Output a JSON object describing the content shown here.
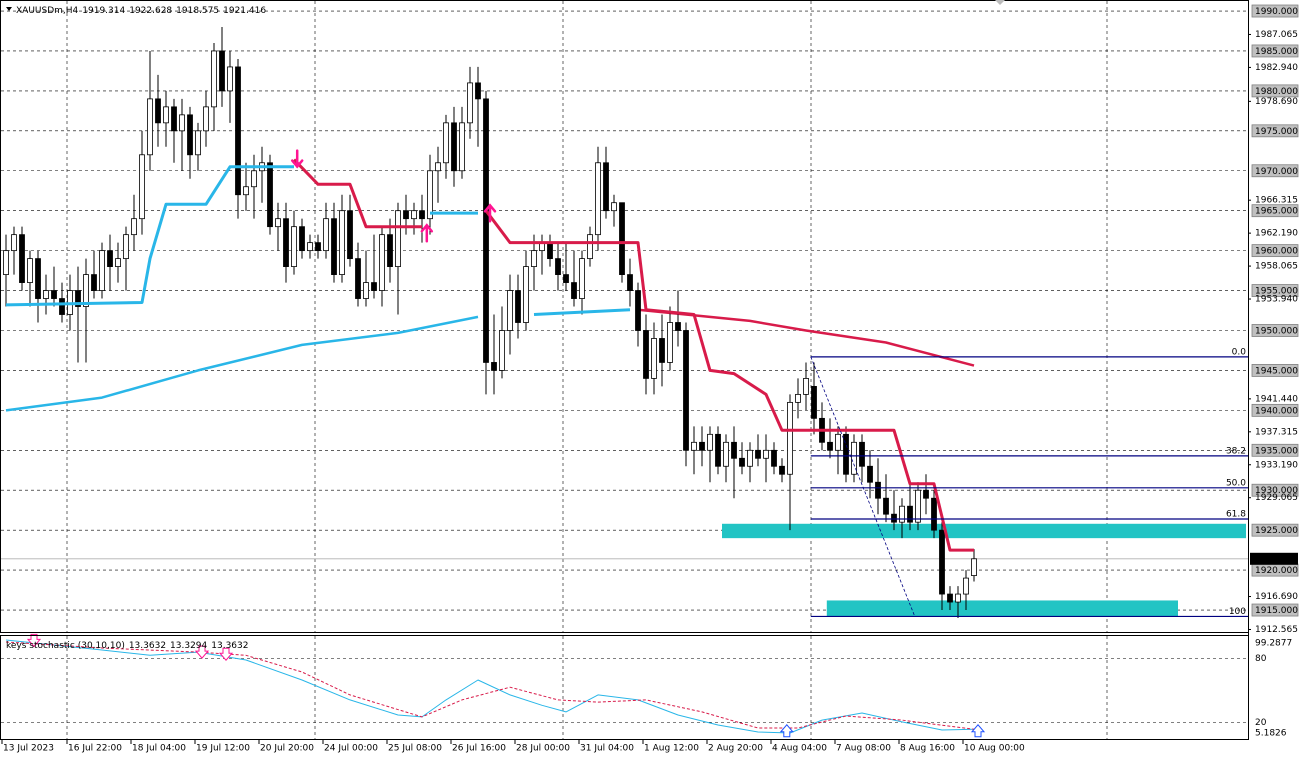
{
  "header": {
    "symbol": "XAUUSDm,H4"
  },
  "chart_data": [
    {
      "type": "candlestick",
      "categories": [
        "13 Jul 2023",
        null,
        null,
        null,
        null,
        null,
        null,
        null,
        "16 Jul 22:00",
        null,
        null,
        null,
        null,
        null,
        null,
        null,
        "18 Jul 04:00",
        null,
        null,
        null,
        null,
        null,
        null,
        null,
        "19 Jul 12:00",
        null,
        null,
        null,
        null,
        null,
        null,
        null,
        "20 Jul 20:00",
        null,
        null,
        null,
        null,
        null,
        null,
        null,
        "24 Jul 00:00",
        null,
        null,
        null,
        null,
        null,
        null,
        null,
        "25 Jul 08:00",
        null,
        null,
        null,
        null,
        null,
        null,
        null,
        "26 Jul 16:00",
        null,
        null,
        null,
        null,
        null,
        null,
        null,
        "28 Jul 00:00",
        null,
        null,
        null,
        null,
        null,
        null,
        null,
        "31 Jul 04:00",
        null,
        null,
        null,
        null,
        null,
        null,
        null,
        "1 Aug 12:00",
        null,
        null,
        null,
        null,
        null,
        null,
        null,
        "2 Aug 20:00",
        null,
        null,
        null,
        null,
        null,
        null,
        null,
        "4 Aug 04:00",
        null,
        null,
        null,
        null,
        null,
        null,
        null,
        "7 Aug 08:00",
        null,
        null,
        null,
        null,
        null,
        null,
        null,
        "8 Aug 16:00",
        null,
        null,
        null,
        null,
        null,
        null,
        null,
        "10 Aug 00:00",
        null
      ],
      "open": [
        1957,
        1960,
        1962,
        1956,
        1959,
        1954,
        1955,
        1954,
        1952,
        1955,
        1953,
        1957,
        1955,
        1960,
        1958,
        1959,
        1962,
        1964,
        1972,
        1979,
        1976,
        1978,
        1975,
        1977,
        1972,
        1975,
        1978,
        1985,
        1980,
        1983,
        1967,
        1968,
        1970,
        1971,
        1963,
        1964,
        1958,
        1963,
        1960,
        1961,
        1960,
        1964,
        1957,
        1965,
        1959,
        1954,
        1956,
        1955,
        1962,
        1958,
        1965,
        1964,
        1965,
        1964,
        1970,
        1971,
        1976,
        1970,
        1976,
        1981,
        1979,
        1946,
        1945,
        1950,
        1955,
        1951,
        1958,
        1960,
        1961,
        1959,
        1957,
        1956,
        1954,
        1959,
        1962,
        1971,
        1965,
        1966,
        1957,
        1955,
        1950,
        1944,
        1949,
        1946,
        1951,
        1950,
        1935,
        1936,
        1935,
        1937,
        1933,
        1936,
        1934,
        1933,
        1935,
        1934,
        1935,
        1933,
        1932,
        1941,
        1942,
        1943,
        1939,
        1936,
        1935,
        1937,
        1932,
        1936,
        1933,
        1931,
        1929,
        1927,
        1926,
        1928,
        1926,
        1930,
        1929,
        1925,
        1917,
        1916,
        1917,
        1919.314
      ],
      "high": [
        1962,
        1963,
        1963,
        1960,
        1960,
        1957,
        1958,
        1956,
        1957,
        1958,
        1959,
        1960,
        1961,
        1962,
        1961,
        1963,
        1967,
        1975,
        1985,
        1982,
        1980,
        1979,
        1979,
        1978,
        1976,
        1980,
        1986,
        1988,
        1985,
        1984,
        1971,
        1972,
        1973,
        1972,
        1966,
        1966,
        1965,
        1964,
        1962,
        1962,
        1966,
        1966,
        1967,
        1967,
        1961,
        1960,
        1962,
        1963,
        1964,
        1966,
        1967,
        1966,
        1967,
        1972,
        1973,
        1977,
        1978,
        1978,
        1983,
        1983,
        1980,
        1952,
        1953,
        1957,
        1957,
        1960,
        1962,
        1962,
        1962,
        1961,
        1961,
        1960,
        1960,
        1963,
        1973,
        1973,
        1967,
        1966,
        1959,
        1956,
        1952,
        1951,
        1952,
        1953,
        1955,
        1951,
        1938,
        1938,
        1938,
        1938,
        1937,
        1938,
        1936,
        1936,
        1937,
        1937,
        1936,
        1934,
        1942,
        1944,
        1946,
        1946,
        1941,
        1939,
        1938,
        1938,
        1937,
        1937,
        1935,
        1934,
        1932,
        1930,
        1929,
        1931,
        1931,
        1932,
        1930,
        1926,
        1918,
        1918,
        1920,
        1922.628
      ],
      "low": [
        1953,
        1957,
        1955,
        1953,
        1951,
        1952,
        1953,
        1951,
        1950,
        1946,
        1946,
        1954,
        1954,
        1955,
        1956,
        1955,
        1960,
        1962,
        1970,
        1973,
        1973,
        1971,
        1970,
        1969,
        1970,
        1973,
        1975,
        1978,
        1976,
        1964,
        1965,
        1964,
        1966,
        1962,
        1960,
        1956,
        1957,
        1959,
        1959,
        1959,
        1959,
        1956,
        1956,
        1958,
        1953,
        1953,
        1954,
        1953,
        1956,
        1952,
        1962,
        1962,
        1961,
        1962,
        1966,
        1969,
        1968,
        1969,
        1974,
        1973,
        1942,
        1942,
        1944,
        1947,
        1949,
        1950,
        1955,
        1957,
        1958,
        1955,
        1955,
        1953,
        1952,
        1958,
        1960,
        1964,
        1963,
        1956,
        1953,
        1948,
        1942,
        1942,
        1943,
        1945,
        1948,
        1933,
        1932,
        1933,
        1931,
        1932,
        1931,
        1929,
        1932,
        1931,
        1933,
        1931,
        1932,
        1931,
        1925,
        1939,
        1940,
        1937,
        1935,
        1934,
        1932,
        1931,
        1931,
        1931,
        1929,
        1927,
        1926,
        1925,
        1924,
        1925,
        1925,
        1927,
        1924,
        1915,
        1915,
        1914,
        1915,
        1918.575
      ],
      "close": [
        1960,
        1962,
        1956,
        1959,
        1954,
        1955,
        1954,
        1952,
        1955,
        1953,
        1957,
        1955,
        1960,
        1958,
        1959,
        1962,
        1964,
        1972,
        1979,
        1976,
        1978,
        1975,
        1977,
        1972,
        1975,
        1978,
        1985,
        1980,
        1983,
        1967,
        1968,
        1970,
        1971,
        1963,
        1964,
        1958,
        1963,
        1960,
        1961,
        1960,
        1964,
        1957,
        1965,
        1959,
        1954,
        1956,
        1955,
        1962,
        1958,
        1965,
        1964,
        1965,
        1964,
        1970,
        1971,
        1976,
        1970,
        1976,
        1981,
        1979,
        1946,
        1945,
        1950,
        1955,
        1951,
        1958,
        1960,
        1961,
        1959,
        1957,
        1956,
        1954,
        1959,
        1962,
        1971,
        1965,
        1966,
        1957,
        1955,
        1950,
        1944,
        1949,
        1946,
        1951,
        1950,
        1935,
        1936,
        1935,
        1937,
        1933,
        1936,
        1934,
        1933,
        1935,
        1934,
        1935,
        1933,
        1932,
        1941,
        1942,
        1944,
        1939,
        1936,
        1935,
        1937,
        1932,
        1936,
        1933,
        1931,
        1929,
        1927,
        1926,
        1928,
        1926,
        1930,
        1929,
        1925,
        1917,
        1916,
        1917,
        1919,
        1921.416
      ],
      "up_color": "#ffffff",
      "down_color": "#000000",
      "ylim": [
        1912.25,
        1991.38
      ],
      "yticks": [
        {
          "value": 1987.065,
          "label": "1987.065"
        },
        {
          "value": 1982.94,
          "label": "1982.940"
        },
        {
          "value": 1978.69,
          "label": "1978.690"
        },
        {
          "value": 1966.315,
          "label": "1966.315"
        },
        {
          "value": 1962.19,
          "label": "1962.190"
        },
        {
          "value": 1958.065,
          "label": "1958.065"
        },
        {
          "value": 1953.94,
          "label": "1953.940"
        },
        {
          "value": 1941.44,
          "label": "1941.440"
        },
        {
          "value": 1937.315,
          "label": "1937.315"
        },
        {
          "value": 1933.19,
          "label": "1933.190"
        },
        {
          "value": 1929.065,
          "label": "1929.065"
        },
        {
          "value": 1916.69,
          "label": "1916.690"
        },
        {
          "value": 1912.565,
          "label": "1912.565"
        }
      ],
      "levels": [
        {
          "value": 1990,
          "label": "1990.000"
        },
        {
          "value": 1985,
          "label": "1985.000"
        },
        {
          "value": 1980,
          "label": "1980.000"
        },
        {
          "value": 1975,
          "label": "1975.000"
        },
        {
          "value": 1970,
          "label": "1970.000"
        },
        {
          "value": 1965,
          "label": "1965.000"
        },
        {
          "value": 1960,
          "label": "1960.000"
        },
        {
          "value": 1955,
          "label": "1955.000"
        },
        {
          "value": 1950,
          "label": "1950.000"
        },
        {
          "value": 1945,
          "label": "1945.000"
        },
        {
          "value": 1940,
          "label": "1940.000"
        },
        {
          "value": 1935,
          "label": "1935.000"
        },
        {
          "value": 1930,
          "label": "1930.000"
        },
        {
          "value": 1925,
          "label": "1925.000"
        },
        {
          "value": 1920,
          "label": "1920.000"
        },
        {
          "value": 1915,
          "label": "1915.000"
        }
      ],
      "grid": true,
      "lines": [
        {
          "color": "#29b6e8",
          "x": [
            0,
            12,
            24,
            37,
            49,
            59
          ],
          "values": [
            1940,
            1941.6,
            1945,
            1948.2,
            1949.7,
            1951.7
          ]
        },
        {
          "color": "#d81b4a",
          "x": [
            79,
            93,
            100,
            110,
            121
          ],
          "values": [
            1952.6,
            1951.2,
            1950,
            1948.5,
            1945.6
          ]
        },
        {
          "color": "#29b6e8",
          "x": [
            0,
            17,
            18,
            20,
            25,
            28,
            36,
            44,
            53,
            59,
            60,
            66,
            78
          ],
          "values": [
            1953.2,
            1953.5,
            1959,
            1965.8,
            1965.8,
            1970.5,
            1970.5,
            null,
            1964.7,
            1964.7,
            null,
            1952,
            1952.6
          ]
        },
        {
          "color": "#d81b4a",
          "x": [
            36,
            39,
            43,
            45,
            52,
            53,
            60,
            63,
            79,
            80,
            86,
            88,
            91,
            95,
            97,
            111,
            113,
            116,
            118,
            121
          ],
          "values": [
            1971.4,
            1968.3,
            1968.3,
            1963,
            1963,
            null,
            1965,
            1961,
            1961,
            1952.6,
            1952,
            1945,
            1944.6,
            1942,
            1937.5,
            1937.5,
            1930.8,
            1930.8,
            1922.5,
            1922.5
          ]
        }
      ],
      "zones": [
        {
          "color": "#22c4c4",
          "x": [
            89.5,
            155
          ],
          "top": 1925.8,
          "bottom": 1924.0
        },
        {
          "color": "#22c4c4",
          "x": [
            102.6,
            146.5
          ],
          "top": 1916.2,
          "bottom": 1914.2
        }
      ],
      "fib": {
        "color": "#000080",
        "x": [
          100.6,
          113.6
        ],
        "levels": [
          {
            "label": "0.0",
            "value": 1946.7
          },
          {
            "label": "38.2",
            "value": 1934.3
          },
          {
            "label": "50.0",
            "value": 1930.3
          },
          {
            "label": "61.8",
            "value": 1926.4
          },
          {
            "label": "100",
            "value": 1914.2
          }
        ]
      },
      "signals": [
        {
          "x": 36.4,
          "value": 1971.4,
          "dir": "down",
          "color": "#ff1493"
        },
        {
          "x": 52.6,
          "value": 1962.3,
          "dir": "up",
          "color": "#ff1493"
        },
        {
          "x": 60.5,
          "value": 1964.8,
          "dir": "up",
          "color": "#ff1493"
        }
      ]
    },
    {
      "type": "line",
      "title": "keys stochastic (30,10,10)",
      "ylim": [
        5.1826,
        99.2877
      ],
      "yticks": [
        80,
        20
      ],
      "series": [
        {
          "color": "#29b6e8",
          "x": [
            0,
            12,
            18,
            24,
            30,
            37,
            43,
            49,
            52,
            55,
            59,
            63,
            67,
            70,
            74,
            79,
            84,
            89,
            94,
            98,
            102,
            107,
            112,
            117,
            121
          ],
          "values": [
            97.4,
            88,
            83,
            86,
            78.6,
            59.8,
            41,
            26.8,
            25,
            41,
            59.8,
            45.7,
            36,
            29.7,
            45.7,
            41,
            26.8,
            17.4,
            10.8,
            9.9,
            22,
            28.7,
            20.3,
            12.7,
            13.3632
          ]
        },
        {
          "color": "#d81b4a",
          "style": "dashed",
          "x": [
            0,
            12,
            24,
            30,
            37,
            43,
            52,
            57,
            63,
            69,
            74,
            80,
            87,
            94,
            99,
            105,
            112,
            121
          ],
          "values": [
            95.5,
            89.9,
            86,
            83,
            67.3,
            45.7,
            25,
            41,
            53,
            41,
            39,
            41,
            29.7,
            14.6,
            14.6,
            25.9,
            22,
            13.3294
          ]
        }
      ],
      "signals": [
        {
          "x": 3.5,
          "value": 97,
          "dir": "down",
          "color": "#ff1493"
        },
        {
          "x": 24.5,
          "value": 86,
          "dir": "down",
          "color": "#ff1493"
        },
        {
          "x": 27.5,
          "value": 84,
          "dir": "down",
          "color": "#ff1493"
        },
        {
          "x": 97.6,
          "value": 12,
          "dir": "up",
          "color": "#1e50ff"
        },
        {
          "x": 121.5,
          "value": 12,
          "dir": "up",
          "color": "#1e50ff"
        }
      ]
    }
  ]
}
